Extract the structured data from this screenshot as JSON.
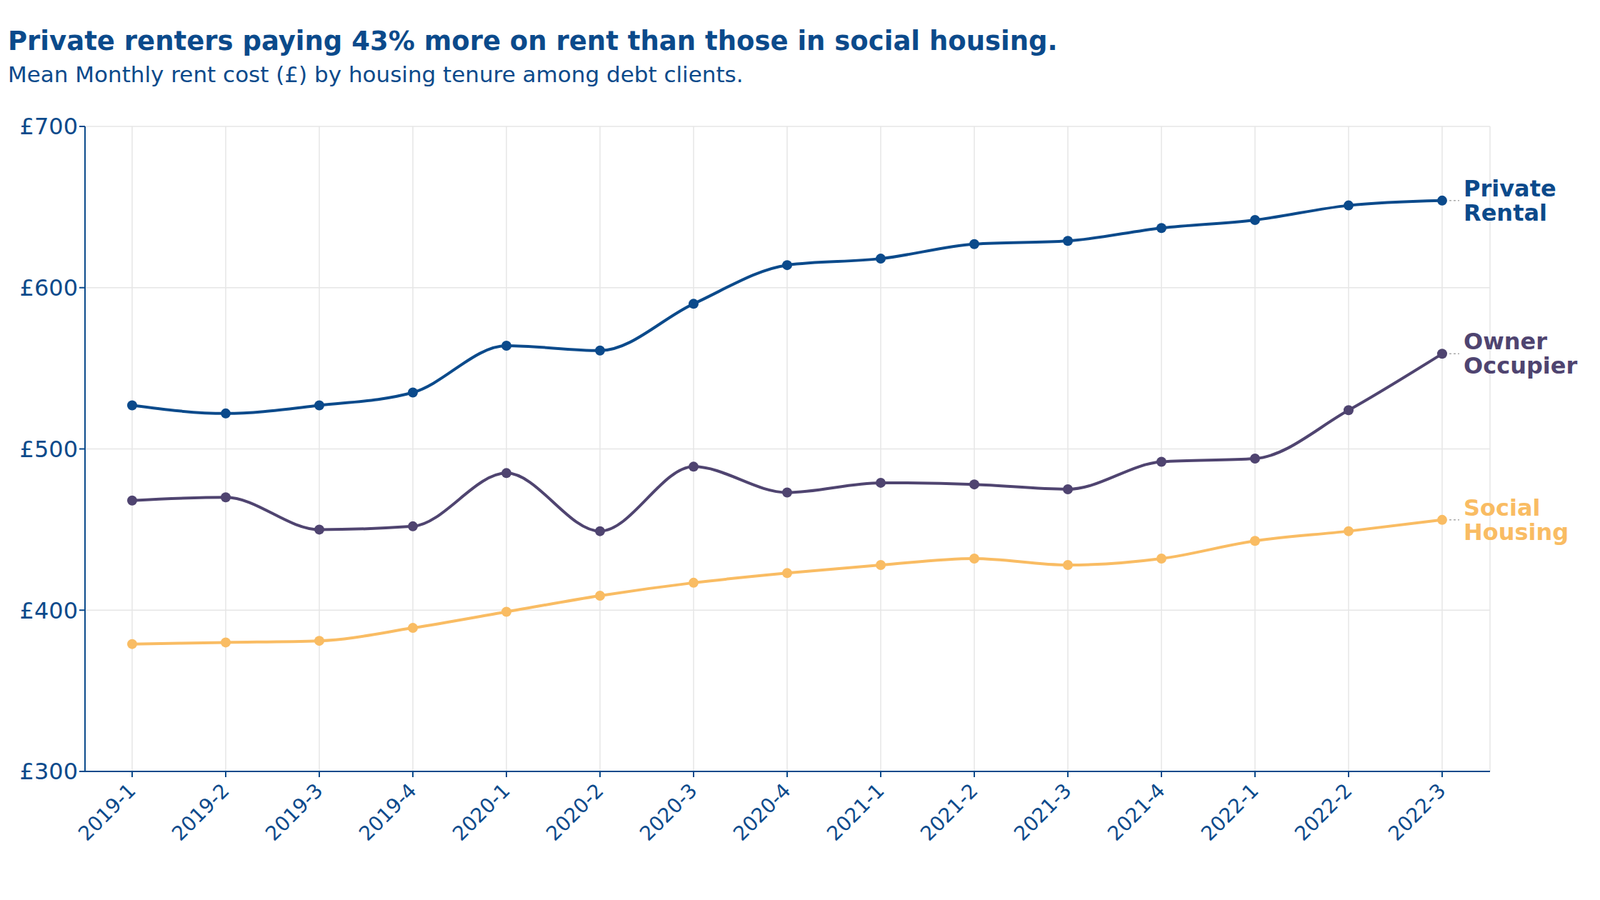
{
  "chart_data": {
    "type": "line",
    "title": "Private renters paying 43% more on rent than those in social housing.",
    "subtitle": "Mean Monthly rent cost (£) by housing tenure among debt clients.",
    "categories": [
      "2019-1",
      "2019-2",
      "2019-3",
      "2019-4",
      "2020-1",
      "2020-2",
      "2020-3",
      "2020-4",
      "2021-1",
      "2021-2",
      "2021-3",
      "2021-4",
      "2022-1",
      "2022-2",
      "2022-3"
    ],
    "series": [
      {
        "name": "Private Rental",
        "color": "#0b4a8b",
        "values": [
          527,
          522,
          527,
          535,
          564,
          561,
          590,
          614,
          618,
          627,
          629,
          637,
          642,
          651,
          654
        ]
      },
      {
        "name": "Owner Occupier",
        "color": "#4f4470",
        "values": [
          468,
          470,
          450,
          452,
          485,
          449,
          489,
          473,
          479,
          478,
          475,
          492,
          494,
          524,
          559
        ]
      },
      {
        "name": "Social Housing",
        "color": "#f9bc63",
        "values": [
          379,
          380,
          381,
          389,
          399,
          409,
          417,
          423,
          428,
          432,
          428,
          432,
          443,
          449,
          456
        ]
      }
    ],
    "ylim": [
      300,
      700
    ],
    "yticks": [
      {
        "value": 300,
        "label": "£300"
      },
      {
        "value": 400,
        "label": "£400"
      },
      {
        "value": 500,
        "label": "£500"
      },
      {
        "value": 600,
        "label": "£600"
      },
      {
        "value": 700,
        "label": "£700"
      }
    ],
    "grid": true,
    "marker": "circle"
  }
}
